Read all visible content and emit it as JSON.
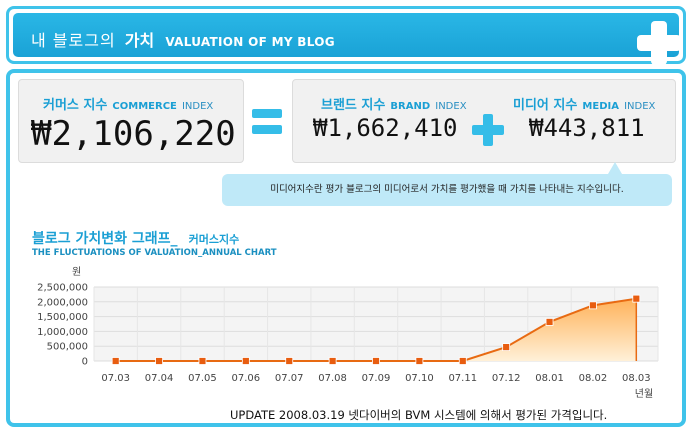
{
  "header": {
    "title_ko": "내 블로그의",
    "title_ko_bold": "가치",
    "title_en": "VALUATION OF MY BLOG",
    "plus_icon": "plus-icon"
  },
  "commerce": {
    "label_ko": "커머스 지수",
    "label_en_bold": "COMMERCE",
    "label_en": "INDEX",
    "value": "₩2,106,220"
  },
  "brand": {
    "label_ko": "브랜드 지수",
    "label_en_bold": "BRAND",
    "label_en": "INDEX",
    "value": "₩1,662,410"
  },
  "media": {
    "label_ko": "미디어 지수",
    "label_en_bold": "MEDIA",
    "label_en": "INDEX",
    "value": "₩443,811"
  },
  "tooltip": "미디어지수란 평가 블로그의 미디어로서 가치를 평가했을 때 가치를 나타내는 지수입니다.",
  "graph": {
    "title_ko": "블로그 가치변화 그래프_",
    "title_suffix": "커머스지수",
    "subtitle": "THE FLUCTUATIONS OF VALUATION_ANNUAL CHART"
  },
  "chart_data": {
    "type": "area",
    "title": "",
    "ylabel": "원",
    "xlabel": "년월",
    "categories": [
      "07.03",
      "07.04",
      "07.05",
      "07.06",
      "07.07",
      "07.08",
      "07.09",
      "07.10",
      "07.11",
      "07.12",
      "08.01",
      "08.02",
      "08.03"
    ],
    "series": [
      {
        "values": [
          0,
          0,
          0,
          0,
          0,
          0,
          0,
          0,
          0,
          470000,
          1320000,
          1880000,
          2106220
        ]
      }
    ],
    "ylim": [
      0,
      2500000
    ],
    "yticks": [
      0,
      500000,
      1000000,
      1500000,
      2000000,
      2500000
    ],
    "ytick_labels": [
      "0",
      "500,000",
      "1,000,000",
      "1,500,000",
      "2,000,000",
      "2,500,000"
    ],
    "grid": true,
    "colors": {
      "line": "#e86a12",
      "fill_top": "#ffb25a",
      "fill_bottom": "#fff0d8",
      "marker": "#e85d10",
      "grid": "#dddddd",
      "plot_bg": "#f4f4f4"
    }
  },
  "update_text": "UPDATE 2008.03.19 넷다이버의 BVM 시스템에 의해서 평가된 가격입니다."
}
